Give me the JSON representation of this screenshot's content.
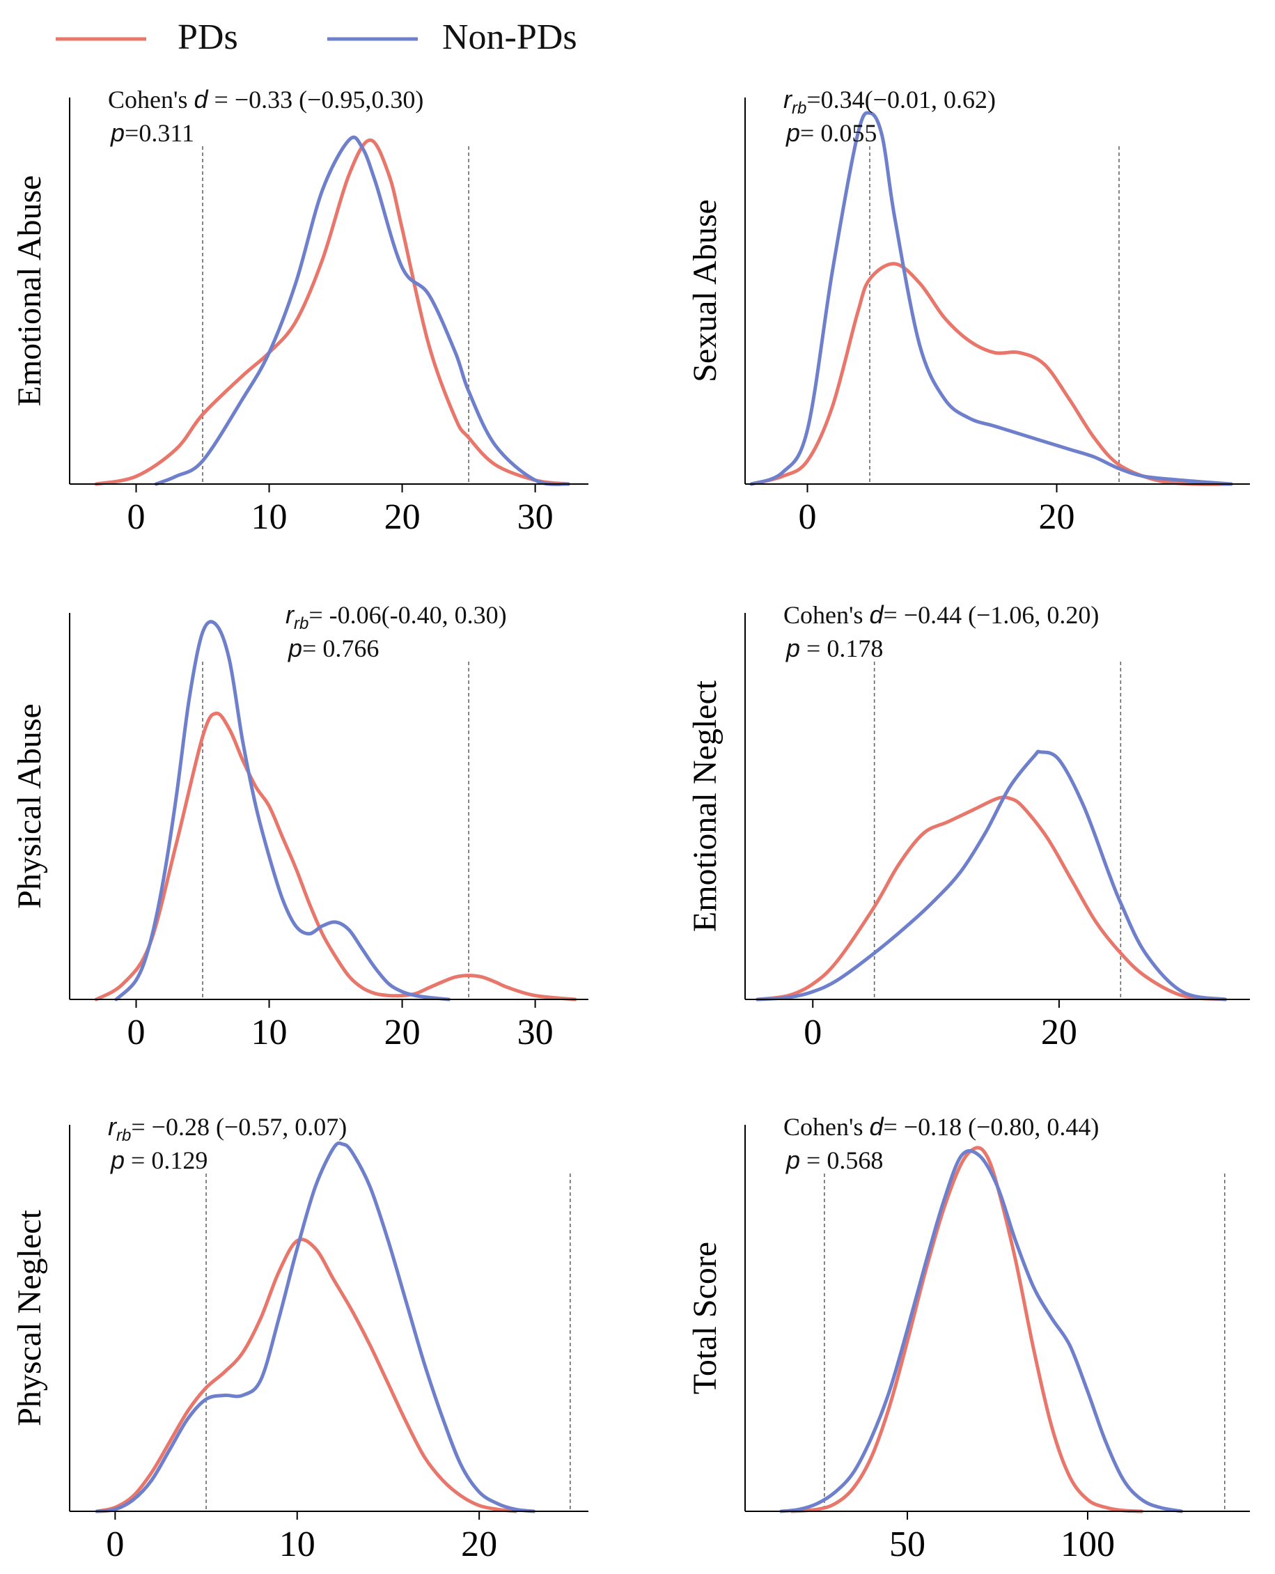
{
  "legend": [
    {
      "label": "PDs",
      "color": "#E8766A"
    },
    {
      "label": "Non-PDs",
      "color": "#6E7FCC"
    }
  ],
  "chart_data": [
    {
      "type": "line",
      "ylabel": "Emotional Abuse",
      "xlim": [
        -5,
        34
      ],
      "xticks": [
        0,
        10,
        20,
        30
      ],
      "vlines": [
        5,
        25
      ],
      "annotation": {
        "stat_prefix": "Cohen's ",
        "stat_symbol": "d",
        "stat_sub": "",
        "stat_text": " = −0.33 (−0.95,0.30)",
        "p_symbol": "p",
        "p_text": "=0.311",
        "position": "top-left"
      },
      "series": [
        {
          "name": "PDs",
          "x": [
            -3,
            0,
            3,
            5,
            8,
            10,
            12,
            14,
            16,
            17.6,
            19,
            20,
            22,
            24,
            25,
            27,
            30,
            32.5
          ],
          "y": [
            0,
            0.02,
            0.09,
            0.18,
            0.28,
            0.34,
            0.42,
            0.58,
            0.8,
            0.89,
            0.8,
            0.66,
            0.36,
            0.17,
            0.12,
            0.05,
            0.01,
            0
          ]
        },
        {
          "name": "Non-PDs",
          "x": [
            1.5,
            3,
            5,
            8,
            10,
            12,
            14,
            16,
            17,
            18,
            20,
            22,
            24,
            25,
            27,
            30,
            32.5
          ],
          "y": [
            0,
            0.02,
            0.06,
            0.22,
            0.34,
            0.52,
            0.76,
            0.89,
            0.87,
            0.78,
            0.56,
            0.49,
            0.34,
            0.24,
            0.1,
            0.01,
            0
          ]
        }
      ]
    },
    {
      "type": "line",
      "ylabel": "Sexual Abuse",
      "xlim": [
        -5,
        35.5
      ],
      "xticks": [
        0,
        20
      ],
      "vlines": [
        5,
        25
      ],
      "annotation": {
        "stat_prefix": "",
        "stat_symbol": "r",
        "stat_sub": "rb",
        "stat_text": "=0.34(−0.01, 0.62)",
        "p_symbol": "p",
        "p_text": "= 0.055",
        "position": "top-left"
      },
      "series": [
        {
          "name": "PDs",
          "x": [
            -4.5,
            -2,
            0,
            2,
            4,
            5,
            7,
            9,
            11,
            13,
            15,
            17,
            19,
            21,
            23,
            25,
            28,
            31,
            34
          ],
          "y": [
            0,
            0.02,
            0.06,
            0.2,
            0.44,
            0.53,
            0.57,
            0.52,
            0.43,
            0.37,
            0.34,
            0.34,
            0.31,
            0.22,
            0.12,
            0.05,
            0.01,
            0,
            0
          ]
        },
        {
          "name": "Non-PDs",
          "x": [
            -4.5,
            -2,
            0,
            2,
            4,
            5,
            6,
            7,
            9,
            11,
            13,
            15,
            17,
            19,
            21,
            23,
            25,
            27,
            30,
            34
          ],
          "y": [
            0,
            0.03,
            0.14,
            0.55,
            0.9,
            0.96,
            0.9,
            0.69,
            0.36,
            0.22,
            0.17,
            0.15,
            0.13,
            0.11,
            0.09,
            0.07,
            0.04,
            0.02,
            0.01,
            0
          ]
        }
      ]
    },
    {
      "type": "line",
      "ylabel": "Physical Abuse",
      "xlim": [
        -5,
        34
      ],
      "xticks": [
        0,
        10,
        20,
        30
      ],
      "vlines": [
        5,
        25
      ],
      "annotation": {
        "stat_prefix": "",
        "stat_symbol": "r",
        "stat_sub": "rb",
        "stat_text": "= -0.06(-0.40, 0.30)",
        "p_symbol": "p",
        "p_text": "= 0.766",
        "position": "top-right"
      },
      "series": [
        {
          "name": "PDs",
          "x": [
            -3,
            -1,
            1,
            3,
            5,
            6,
            7,
            8,
            9,
            10,
            11,
            12,
            13,
            14,
            15,
            16,
            17,
            18,
            19,
            20,
            21,
            22,
            23,
            24,
            25,
            26,
            27,
            28,
            30,
            33
          ],
          "y": [
            0,
            0.04,
            0.14,
            0.4,
            0.68,
            0.74,
            0.7,
            0.62,
            0.55,
            0.5,
            0.42,
            0.34,
            0.25,
            0.17,
            0.11,
            0.06,
            0.03,
            0.015,
            0.01,
            0.01,
            0.015,
            0.03,
            0.045,
            0.058,
            0.062,
            0.058,
            0.045,
            0.03,
            0.01,
            0
          ]
        },
        {
          "name": "Non-PDs",
          "x": [
            -1.5,
            0,
            1,
            2,
            3,
            4,
            5,
            6,
            7,
            8,
            9,
            10,
            11,
            12,
            13,
            14,
            15,
            16,
            17,
            18,
            19,
            20,
            21,
            22,
            23.5
          ],
          "y": [
            0,
            0.05,
            0.14,
            0.3,
            0.52,
            0.78,
            0.95,
            0.97,
            0.88,
            0.67,
            0.5,
            0.37,
            0.26,
            0.19,
            0.17,
            0.19,
            0.2,
            0.18,
            0.13,
            0.08,
            0.04,
            0.02,
            0.01,
            0.005,
            0
          ]
        }
      ]
    },
    {
      "type": "line",
      "ylabel": "Emotional Neglect",
      "xlim": [
        -5.5,
        35.5
      ],
      "xticks": [
        0,
        20
      ],
      "vlines": [
        5,
        25
      ],
      "annotation": {
        "stat_prefix": "Cohen's ",
        "stat_symbol": "d",
        "stat_sub": "",
        "stat_text": "= −0.44 (−1.06, 0.20)",
        "p_symbol": "p",
        "p_text": " = 0.178",
        "position": "top-left"
      },
      "series": [
        {
          "name": "PDs",
          "x": [
            -4.5,
            -2,
            0,
            2,
            5,
            7,
            9,
            11,
            13,
            15,
            16,
            17,
            19,
            21,
            23,
            25,
            27,
            30,
            33.5
          ],
          "y": [
            0,
            0.01,
            0.04,
            0.1,
            0.24,
            0.35,
            0.43,
            0.46,
            0.49,
            0.52,
            0.52,
            0.5,
            0.42,
            0.31,
            0.2,
            0.12,
            0.06,
            0.01,
            0
          ]
        },
        {
          "name": "Non-PDs",
          "x": [
            -4.5,
            -2,
            0,
            2,
            5,
            8,
            10,
            12,
            14,
            16,
            18,
            18.5,
            20,
            22,
            24,
            25,
            27,
            30,
            33.5
          ],
          "y": [
            0,
            0.005,
            0.02,
            0.05,
            0.12,
            0.2,
            0.26,
            0.33,
            0.43,
            0.55,
            0.63,
            0.64,
            0.62,
            0.5,
            0.33,
            0.25,
            0.12,
            0.02,
            0
          ]
        }
      ]
    },
    {
      "type": "line",
      "ylabel": "Physcal Neglect",
      "xlim": [
        -2.5,
        26
      ],
      "xticks": [
        0,
        10,
        20
      ],
      "vlines": [
        5,
        25
      ],
      "annotation": {
        "stat_prefix": "",
        "stat_symbol": "r",
        "stat_sub": "rb",
        "stat_text": "= −0.28 (−0.57, 0.07)",
        "p_symbol": "p",
        "p_text": " = 0.129",
        "position": "top-left"
      },
      "series": [
        {
          "name": "PDs",
          "x": [
            -1,
            0,
            1,
            2,
            3,
            4,
            5,
            6,
            7,
            8,
            9,
            10,
            11,
            12,
            13,
            14,
            15,
            16,
            17,
            18,
            19,
            20,
            21,
            22
          ],
          "y": [
            0,
            0.01,
            0.04,
            0.1,
            0.18,
            0.26,
            0.32,
            0.36,
            0.41,
            0.5,
            0.62,
            0.7,
            0.68,
            0.6,
            0.52,
            0.43,
            0.33,
            0.23,
            0.14,
            0.08,
            0.04,
            0.015,
            0.005,
            0
          ]
        },
        {
          "name": "Non-PDs",
          "x": [
            -1,
            0,
            1,
            2,
            3,
            4,
            5,
            6,
            7,
            8,
            9,
            10,
            11,
            12,
            12.5,
            13,
            14,
            15,
            16,
            17,
            18,
            19,
            20,
            21,
            22,
            23
          ],
          "y": [
            0,
            0.005,
            0.03,
            0.08,
            0.16,
            0.24,
            0.29,
            0.3,
            0.3,
            0.34,
            0.5,
            0.68,
            0.84,
            0.94,
            0.95,
            0.93,
            0.84,
            0.7,
            0.54,
            0.38,
            0.24,
            0.12,
            0.05,
            0.02,
            0.005,
            0
          ]
        }
      ]
    },
    {
      "type": "line",
      "ylabel": "Total Score",
      "xlim": [
        5,
        145
      ],
      "xticks": [
        50,
        100
      ],
      "vlines": [
        27,
        138
      ],
      "annotation": {
        "stat_prefix": "Cohen's ",
        "stat_symbol": "d",
        "stat_sub": "",
        "stat_text": "= −0.18 (−0.80, 0.44)",
        "p_symbol": "p",
        "p_text": " = 0.568",
        "position": "top-left"
      },
      "series": [
        {
          "name": "PDs",
          "x": [
            18,
            25,
            30,
            35,
            40,
            45,
            50,
            55,
            60,
            65,
            69,
            72,
            75,
            80,
            85,
            90,
            95,
            100,
            105,
            110,
            115
          ],
          "y": [
            0,
            0.005,
            0.02,
            0.06,
            0.14,
            0.27,
            0.44,
            0.62,
            0.78,
            0.9,
            0.94,
            0.92,
            0.84,
            0.65,
            0.42,
            0.22,
            0.09,
            0.03,
            0.01,
            0.002,
            0
          ]
        },
        {
          "name": "Non-PDs",
          "x": [
            15,
            20,
            25,
            30,
            35,
            40,
            45,
            50,
            55,
            60,
            65,
            70,
            75,
            80,
            85,
            90,
            95,
            100,
            105,
            110,
            115,
            120,
            126
          ],
          "y": [
            0,
            0.005,
            0.02,
            0.05,
            0.1,
            0.19,
            0.31,
            0.47,
            0.64,
            0.8,
            0.92,
            0.92,
            0.84,
            0.7,
            0.58,
            0.5,
            0.43,
            0.31,
            0.18,
            0.08,
            0.03,
            0.01,
            0
          ]
        }
      ]
    }
  ]
}
